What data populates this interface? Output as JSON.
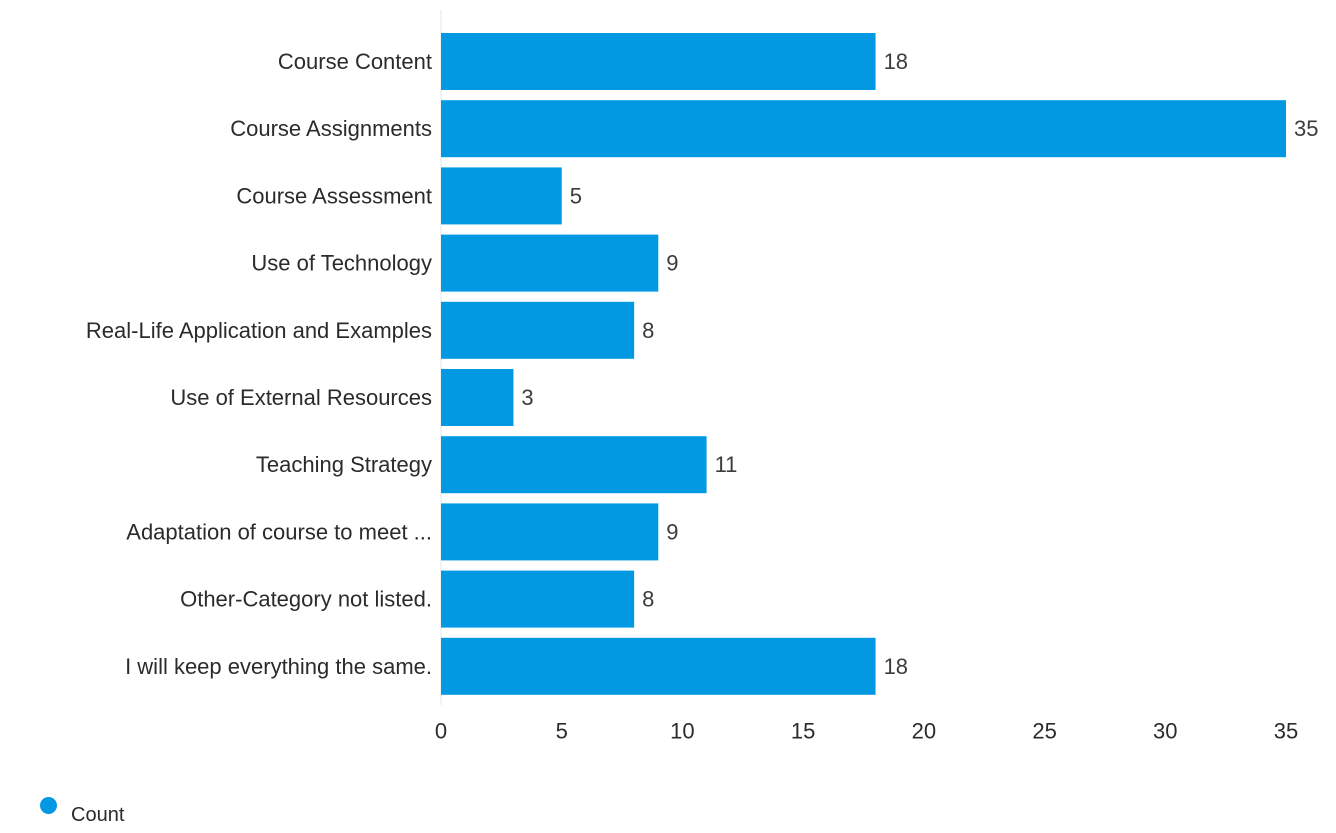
{
  "chart_data": {
    "type": "bar",
    "orientation": "horizontal",
    "categories": [
      "Course Content",
      "Course Assignments",
      "Course Assessment",
      "Use of Technology",
      "Real-Life Application and Examples",
      "Use of External Resources",
      "Teaching Strategy",
      "Adaptation of course to meet ...",
      "Other-Category not listed.",
      "I will keep everything the same."
    ],
    "series": [
      {
        "name": "Count",
        "values": [
          18,
          35,
          5,
          9,
          8,
          3,
          11,
          9,
          8,
          18
        ],
        "color": "#0299e2"
      }
    ],
    "xlim": [
      0,
      35
    ],
    "xticks": [
      0,
      5,
      10,
      15,
      20,
      25,
      30,
      35
    ],
    "grid": false,
    "data_labels": true,
    "legend_position": "bottom-left"
  },
  "legend": {
    "label": "Count",
    "color": "#0299e2"
  }
}
